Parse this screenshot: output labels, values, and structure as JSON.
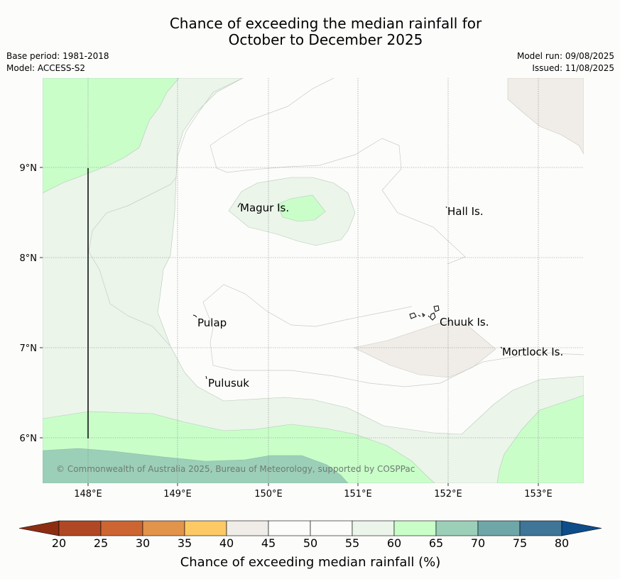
{
  "title_line1": "Chance of exceeding the median rainfall for",
  "title_line2": "October to December 2025",
  "meta_left": [
    "Base period: 1981-2018",
    "Model: ACCESS-S2"
  ],
  "meta_right": [
    "Model run: 09/08/2025",
    "Issued: 11/08/2025"
  ],
  "lat_labels": [
    "9°N",
    "8°N",
    "7°N",
    "6°N"
  ],
  "lon_labels": [
    "148°E",
    "149°E",
    "150°E",
    "151°E",
    "152°E",
    "153°E"
  ],
  "places": [
    "Magur Is.",
    "Hall Is.",
    "Pulap",
    "Chuuk Is.",
    "Mortlock Is.",
    "Pulusuk"
  ],
  "copyright": "© Commonwealth of Australia 2025, Bureau of Meteorology, supported by COSPPac",
  "colorbar": {
    "title": "Chance of exceeding median rainfall (%)",
    "ticks": [
      "20",
      "25",
      "30",
      "35",
      "40",
      "45",
      "50",
      "55",
      "60",
      "65",
      "70",
      "75",
      "80"
    ],
    "under_color": "#8c2d12",
    "over_color": "#0d4d8a",
    "colors": [
      "#b14825",
      "#cd6532",
      "#e2944b",
      "#fcc965",
      "#f0ede8",
      "#fcfdfb",
      "#fcfdfb",
      "#ebf5ea",
      "#c9fec9",
      "#9ccfb8",
      "#6fa7a8",
      "#3f7596"
    ]
  }
}
